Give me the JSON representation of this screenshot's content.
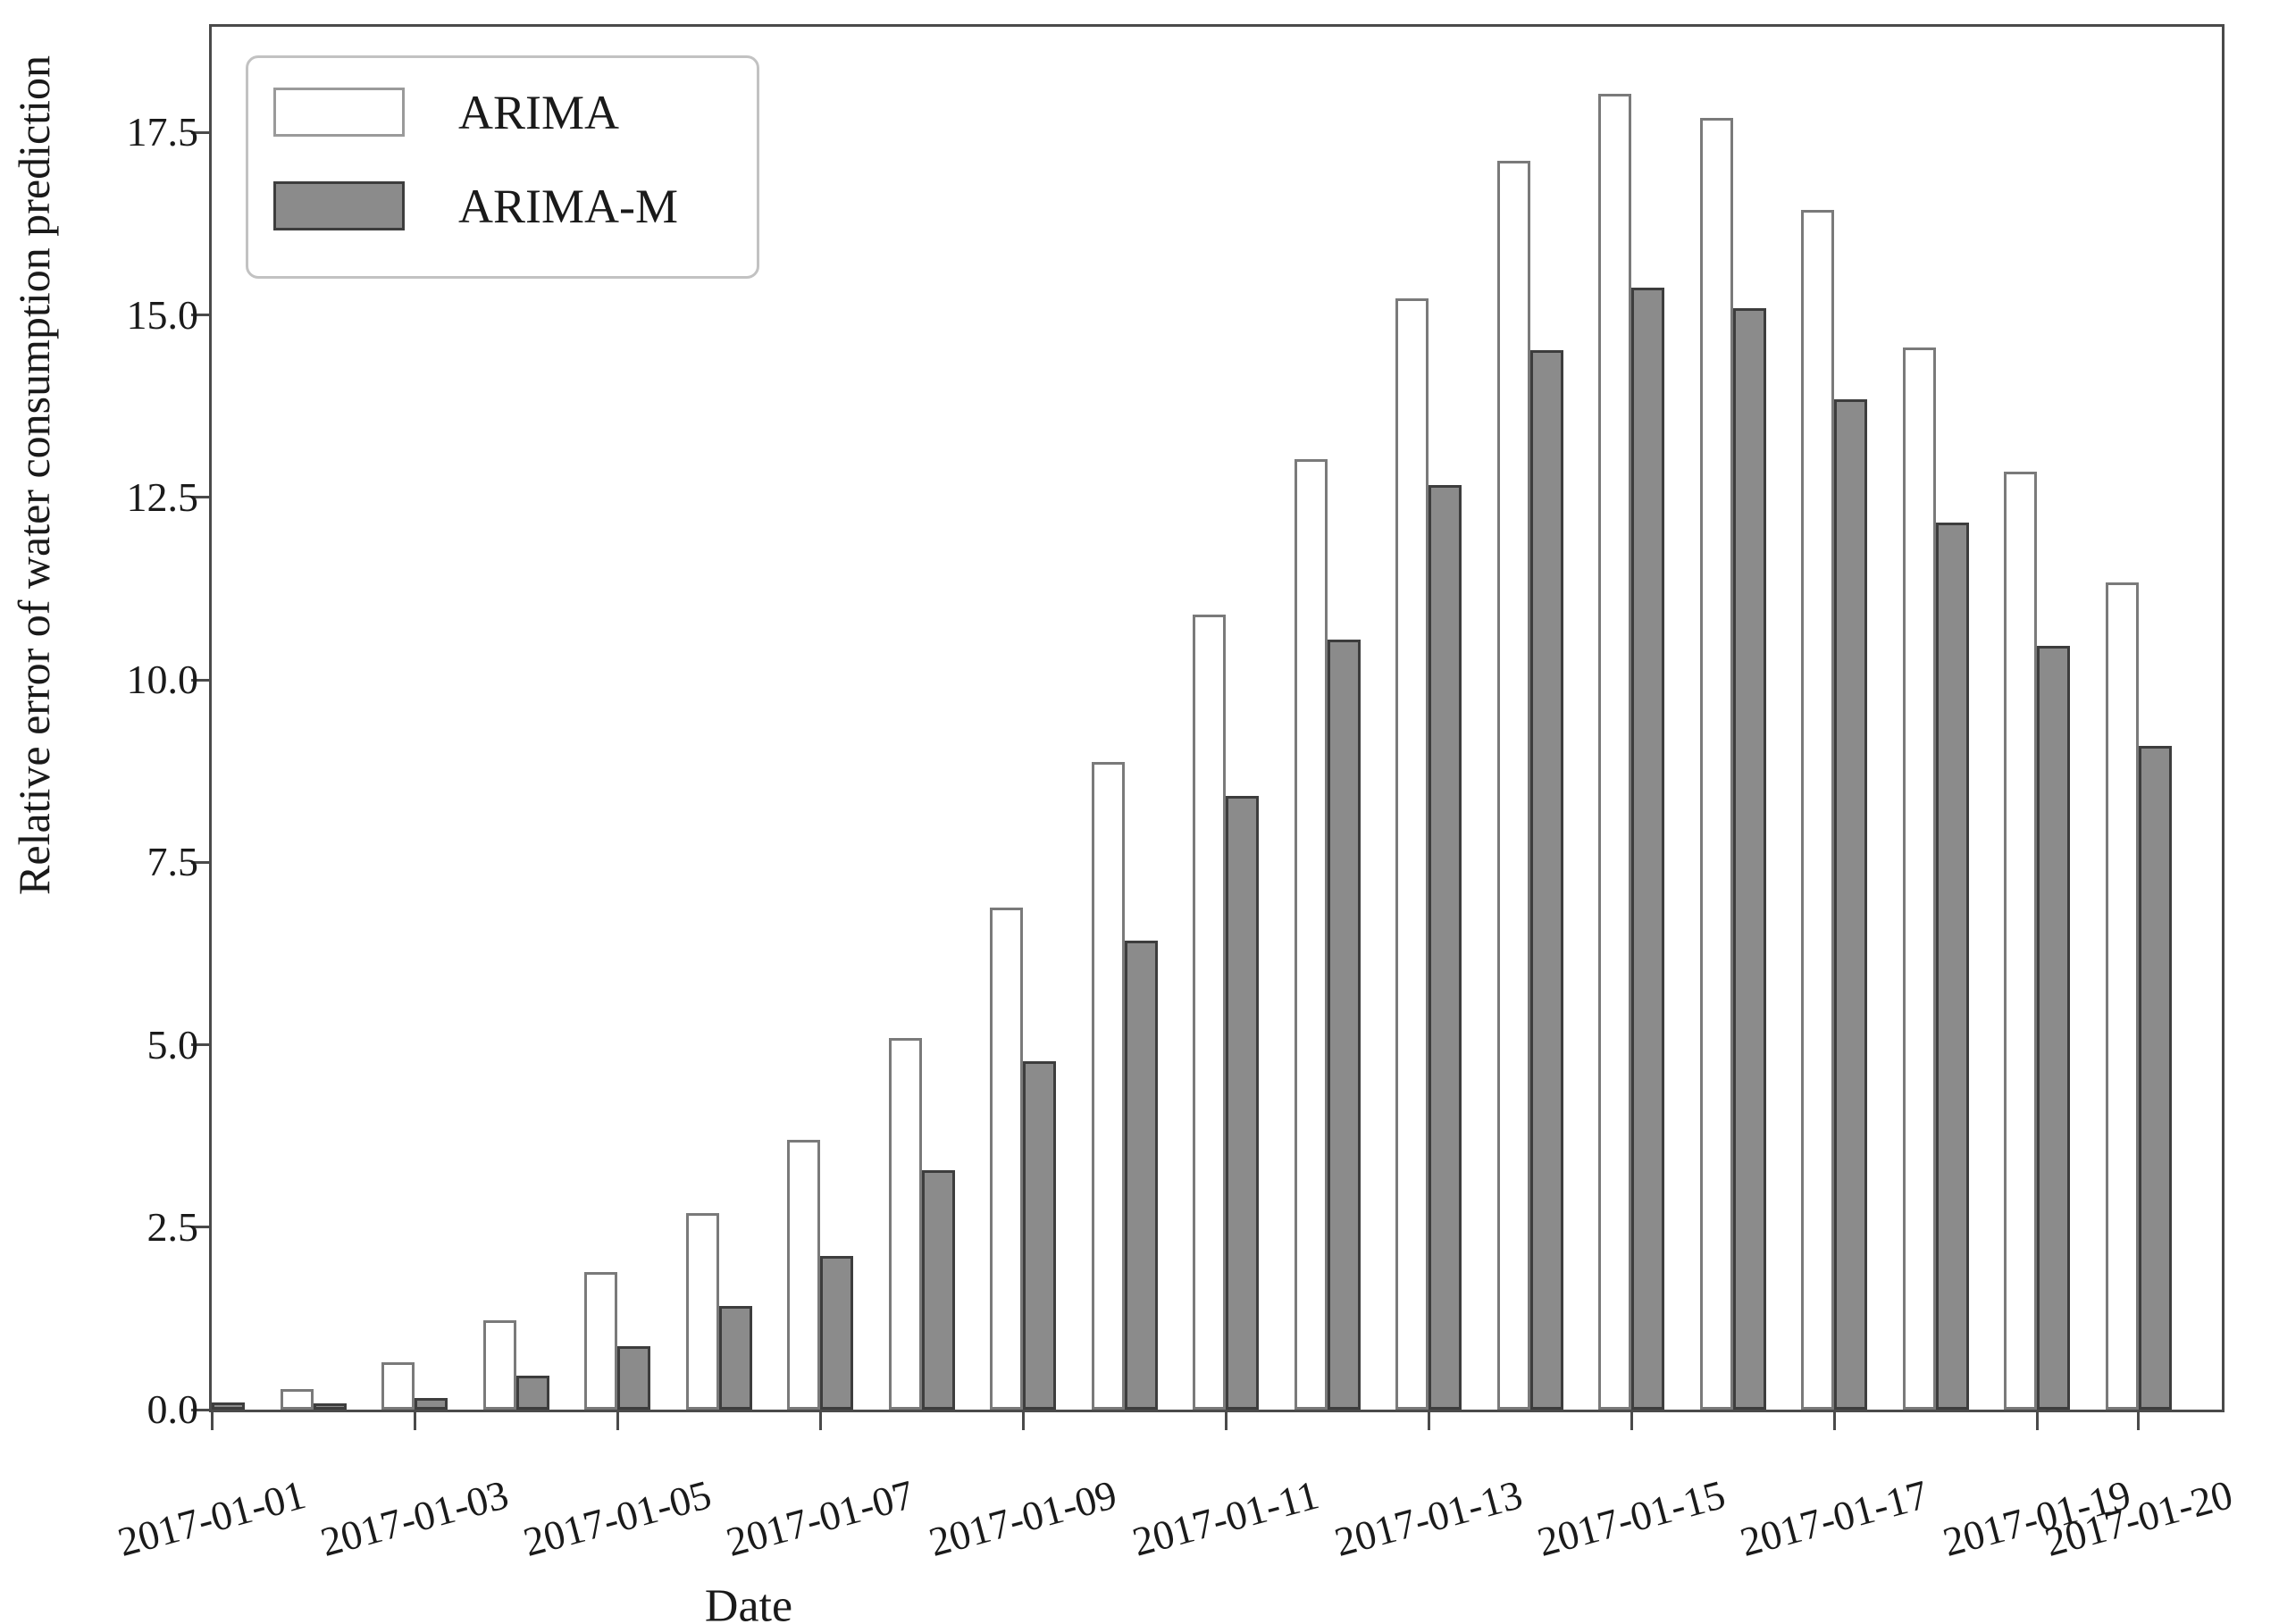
{
  "chart_data": {
    "type": "bar",
    "title": "",
    "xlabel": "Date",
    "ylabel": "Relative error of water consumption prediction",
    "categories": [
      "2017-01-01",
      "2017-01-02",
      "2017-01-03",
      "2017-01-04",
      "2017-01-05",
      "2017-01-06",
      "2017-01-07",
      "2017-01-08",
      "2017-01-09",
      "2017-01-10",
      "2017-01-11",
      "2017-01-12",
      "2017-01-13",
      "2017-01-14",
      "2017-01-15",
      "2017-01-16",
      "2017-01-17",
      "2017-01-18",
      "2017-01-19",
      "2017-01-20"
    ],
    "series": [
      {
        "name": "ARIMA",
        "fill_color": "#ffffff",
        "edge_color": "#7a7a7a",
        "values": [
          null,
          0.28,
          0.65,
          1.22,
          1.89,
          2.69,
          3.7,
          5.09,
          6.88,
          8.88,
          10.89,
          13.02,
          15.23,
          17.11,
          18.03,
          17.7,
          16.44,
          14.55,
          12.85,
          11.33
        ]
      },
      {
        "name": "ARIMA-M",
        "fill_color": "#8b8b8b",
        "edge_color": "#3d3d3d",
        "values": [
          0.1,
          0.08,
          0.16,
          0.46,
          0.87,
          1.42,
          2.11,
          3.28,
          4.77,
          6.43,
          8.41,
          10.55,
          12.67,
          14.52,
          15.38,
          15.1,
          13.85,
          12.15,
          10.47,
          9.1
        ]
      }
    ],
    "y_ticks": [
      "0.0",
      "2.5",
      "5.0",
      "7.5",
      "10.0",
      "12.5",
      "15.0",
      "17.5"
    ],
    "x_ticks": [
      {
        "day": 1,
        "label": "2017-01-01"
      },
      {
        "day": 3,
        "label": "2017-01-03"
      },
      {
        "day": 5,
        "label": "2017-01-05"
      },
      {
        "day": 7,
        "label": "2017-01-07"
      },
      {
        "day": 9,
        "label": "2017-01-09"
      },
      {
        "day": 11,
        "label": "2017-01-11"
      },
      {
        "day": 13,
        "label": "2017-01-13"
      },
      {
        "day": 15,
        "label": "2017-01-15"
      },
      {
        "day": 17,
        "label": "2017-01-17"
      },
      {
        "day": 19,
        "label": "2017-01-19"
      },
      {
        "day": 20,
        "label": "2017-01-20"
      }
    ],
    "ylim": [
      0,
      18.95
    ],
    "grid": false,
    "legend_position": "upper left"
  }
}
